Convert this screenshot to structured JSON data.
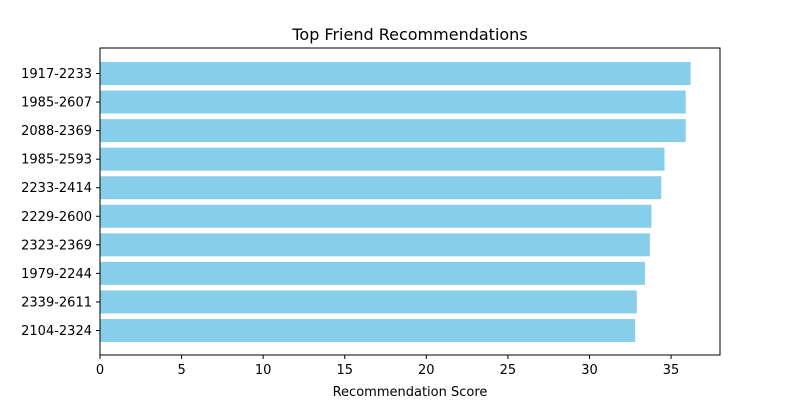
{
  "chart_data": {
    "type": "bar",
    "orientation": "horizontal",
    "title": "Top Friend Recommendations",
    "xlabel": "Recommendation Score",
    "ylabel": "",
    "categories": [
      "1917-2233",
      "1985-2607",
      "2088-2369",
      "1985-2593",
      "2233-2414",
      "2229-2600",
      "2323-2369",
      "1979-2244",
      "2339-2611",
      "2104-2324"
    ],
    "values": [
      36.2,
      35.9,
      35.9,
      34.6,
      34.4,
      33.8,
      33.7,
      33.4,
      32.9,
      32.8
    ],
    "xlim": [
      0,
      38
    ],
    "xticks": [
      0,
      5,
      10,
      15,
      20,
      25,
      30,
      35
    ],
    "grid": false,
    "bar_color": "#87ceeb"
  }
}
